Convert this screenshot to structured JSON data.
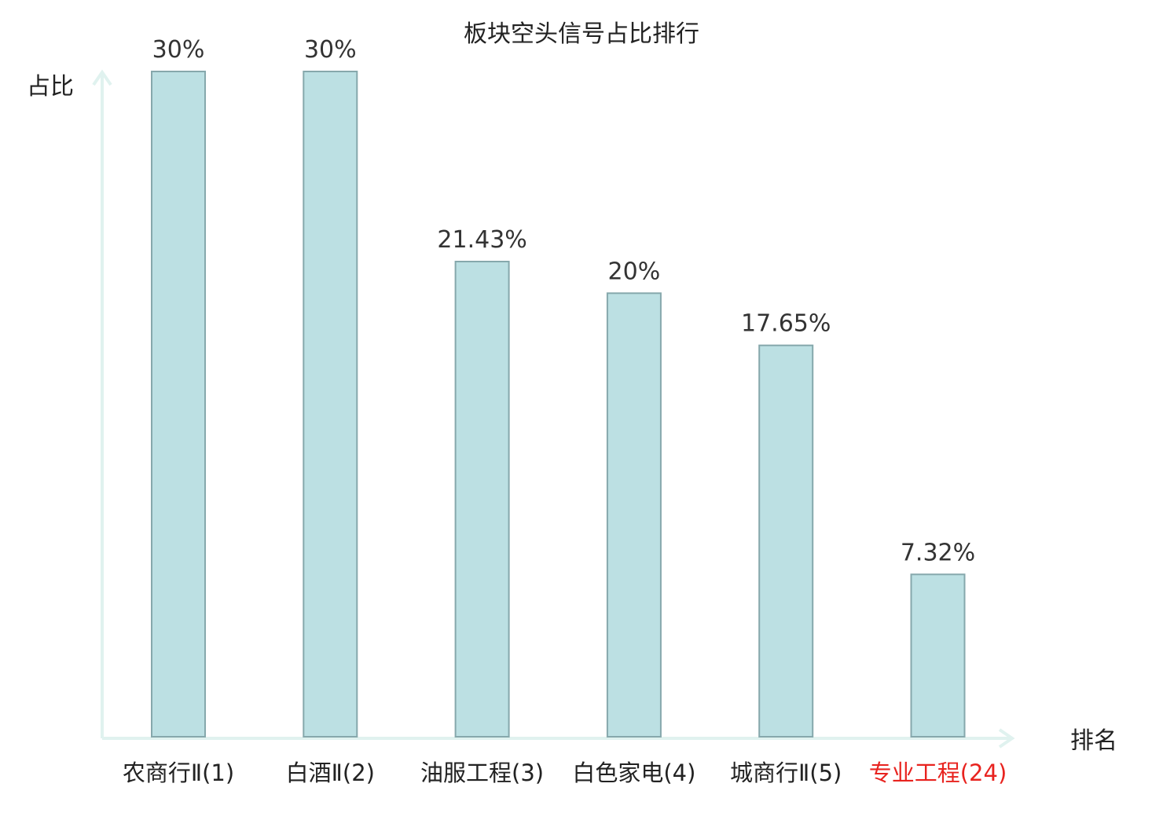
{
  "chart_data": {
    "type": "bar",
    "title": "板块空头信号占比排行",
    "xlabel": "排名",
    "ylabel": "占比",
    "categories": [
      "农商行Ⅱ(1)",
      "白酒Ⅱ(2)",
      "油服工程(3)",
      "白色家电(4)",
      "城商行Ⅱ(5)",
      "专业工程(24)"
    ],
    "values": [
      30,
      30,
      21.43,
      20,
      17.65,
      7.32
    ],
    "value_labels": [
      "30%",
      "30%",
      "21.43%",
      "20%",
      "17.65%",
      "7.32%"
    ],
    "highlight_index": 5,
    "ylim": [
      0,
      30
    ],
    "grid": false,
    "legend": "none",
    "colors": {
      "bar_fill": "#bce0e3",
      "bar_stroke": "#86a8ac",
      "axis": "#e0f2ef",
      "text": "#222222",
      "value_label": "#333333",
      "highlight_label": "#e8231f"
    }
  }
}
